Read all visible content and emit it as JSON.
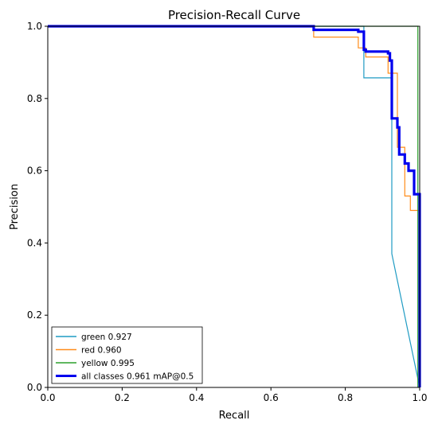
{
  "chart_data": {
    "type": "line",
    "title": "Precision-Recall Curve",
    "xlabel": "Recall",
    "ylabel": "Precision",
    "xlim": [
      0,
      1
    ],
    "ylim": [
      0,
      1
    ],
    "xticks": [
      "0.0",
      "0.2",
      "0.4",
      "0.6",
      "0.8",
      "1.0"
    ],
    "yticks": [
      "0.0",
      "0.2",
      "0.4",
      "0.6",
      "0.8",
      "1.0"
    ],
    "grid": false,
    "legend_position": "bottom-left",
    "series": [
      {
        "name": "green 0.927",
        "color": "#1f9bc3",
        "width": 1.2,
        "x": [
          0,
          0.85,
          0.85,
          0.925,
          0.925,
          1.0
        ],
        "y": [
          1.0,
          1.0,
          0.857,
          0.857,
          0.37,
          0.0
        ]
      },
      {
        "name": "red 0.960",
        "color": "#ff8c1a",
        "width": 1.2,
        "x": [
          0,
          0.715,
          0.715,
          0.835,
          0.835,
          0.855,
          0.855,
          0.915,
          0.915,
          0.94,
          0.94,
          0.96,
          0.96,
          0.975,
          0.975,
          1.0,
          1.0
        ],
        "y": [
          1.0,
          1.0,
          0.97,
          0.97,
          0.94,
          0.94,
          0.915,
          0.915,
          0.87,
          0.87,
          0.665,
          0.665,
          0.53,
          0.53,
          0.49,
          0.49,
          0.0
        ]
      },
      {
        "name": "yellow 0.995",
        "color": "#2ca02c",
        "width": 1.2,
        "x": [
          0,
          0.995,
          0.995
        ],
        "y": [
          1.0,
          1.0,
          0.0
        ]
      },
      {
        "name": "all classes 0.961 mAP@0.5",
        "color": "#0000ee",
        "width": 3.2,
        "x": [
          0,
          0.715,
          0.715,
          0.835,
          0.835,
          0.85,
          0.85,
          0.855,
          0.855,
          0.915,
          0.915,
          0.92,
          0.92,
          0.925,
          0.925,
          0.94,
          0.94,
          0.945,
          0.945,
          0.96,
          0.96,
          0.97,
          0.97,
          0.985,
          0.985,
          1.0,
          1.0
        ],
        "y": [
          1.0,
          1.0,
          0.99,
          0.99,
          0.985,
          0.985,
          0.935,
          0.935,
          0.93,
          0.93,
          0.925,
          0.925,
          0.905,
          0.905,
          0.745,
          0.745,
          0.72,
          0.72,
          0.645,
          0.645,
          0.62,
          0.62,
          0.6,
          0.6,
          0.535,
          0.535,
          0.0
        ]
      }
    ]
  }
}
